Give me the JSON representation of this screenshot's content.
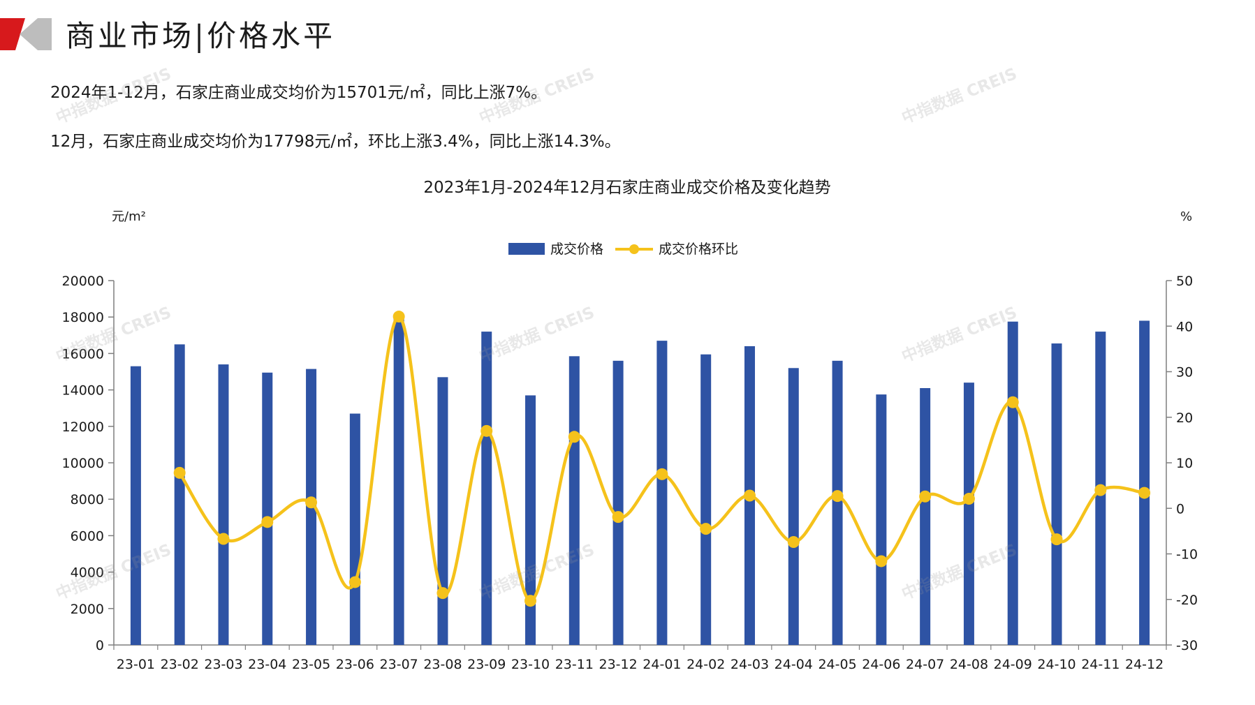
{
  "header": {
    "title": "商业市场|价格水平"
  },
  "summary": {
    "line1": "2024年1-12月，石家庄商业成交均价为15701元/㎡，同比上涨7%。",
    "line2": "12月，石家庄商业成交均价为17798元/㎡，环比上涨3.4%，同比上涨14.3%。"
  },
  "watermark": {
    "text": "中指数据 CREIS"
  },
  "colors": {
    "bar": "#2E53A4",
    "line": "#F5C21B",
    "logo_red": "#D7191C",
    "logo_gray": "#BDBDBD"
  },
  "chart_data": {
    "type": "bar",
    "title": "2023年1月-2024年12月石家庄商业成交价格及变化趋势",
    "y_left_unit": "元/m²",
    "y_right_unit": "%",
    "categories": [
      "23-01",
      "23-02",
      "23-03",
      "23-04",
      "23-05",
      "23-06",
      "23-07",
      "23-08",
      "23-09",
      "23-10",
      "23-11",
      "23-12",
      "24-01",
      "24-02",
      "24-03",
      "24-04",
      "24-05",
      "24-06",
      "24-07",
      "24-08",
      "24-09",
      "24-10",
      "24-11",
      "24-12"
    ],
    "series": [
      {
        "name": "成交价格",
        "type": "bar",
        "axis": "left",
        "values": [
          15300,
          16500,
          15400,
          14950,
          15150,
          12700,
          18050,
          14700,
          17200,
          13700,
          15850,
          15600,
          16700,
          15950,
          16400,
          15200,
          15600,
          13750,
          14100,
          14400,
          17750,
          16550,
          17200,
          17798
        ]
      },
      {
        "name": "成交价格环比",
        "type": "line",
        "axis": "right",
        "values": [
          null,
          7.8,
          -6.7,
          -3.0,
          1.3,
          -16.2,
          42.1,
          -18.6,
          17.0,
          -20.3,
          15.7,
          -1.9,
          7.5,
          -4.5,
          2.8,
          -7.4,
          2.7,
          -11.6,
          2.6,
          2.1,
          23.3,
          -6.8,
          4.0,
          3.4
        ]
      }
    ],
    "y_left": {
      "min": 0,
      "max": 20000,
      "step": 2000
    },
    "y_right": {
      "min": -30,
      "max": 50,
      "step": 10
    },
    "legend": "top-center",
    "grid": false
  }
}
